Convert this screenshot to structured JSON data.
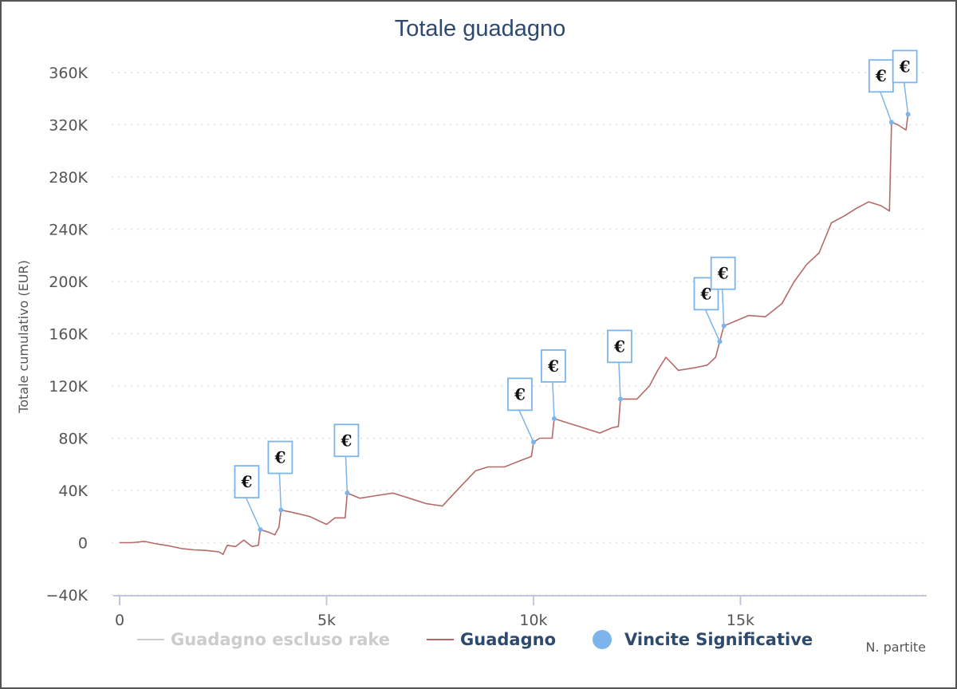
{
  "chart_data": {
    "type": "line",
    "title": "Totale guadagno",
    "xlabel": "N. partite",
    "ylabel": "Totale cumulativo (EUR)",
    "xlim": [
      0,
      19500
    ],
    "ylim": [
      -40000,
      360000
    ],
    "x_ticks": [
      0,
      5000,
      10000,
      15000
    ],
    "x_tick_labels": [
      "0",
      "5k",
      "10k",
      "15k"
    ],
    "y_ticks": [
      -40000,
      0,
      40000,
      80000,
      120000,
      160000,
      200000,
      240000,
      280000,
      320000,
      360000
    ],
    "y_tick_labels": [
      "−40K",
      "0",
      "40K",
      "80K",
      "120K",
      "160K",
      "200K",
      "240K",
      "280K",
      "320K",
      "360K"
    ],
    "grid": "horizontal dotted",
    "legend_position": "bottom",
    "legend": [
      {
        "label": "Guadagno escluso rake",
        "type": "line",
        "color": "#cccccc",
        "visible": false
      },
      {
        "label": "Guadagno",
        "type": "line",
        "color": "#b56a68",
        "visible": true
      },
      {
        "label": "Vincite Significative",
        "type": "marker",
        "color": "#7cb5ec",
        "visible": true
      }
    ],
    "series": [
      {
        "name": "Guadagno",
        "color": "#b56a68",
        "points": [
          [
            0,
            0
          ],
          [
            300,
            0
          ],
          [
            600,
            1000
          ],
          [
            900,
            -1000
          ],
          [
            1200,
            -2500
          ],
          [
            1500,
            -4500
          ],
          [
            1800,
            -5500
          ],
          [
            2100,
            -6000
          ],
          [
            2400,
            -7000
          ],
          [
            2500,
            -9000
          ],
          [
            2600,
            -2000
          ],
          [
            2800,
            -3000
          ],
          [
            3000,
            2000
          ],
          [
            3200,
            -3000
          ],
          [
            3350,
            -2000
          ],
          [
            3400,
            10000
          ],
          [
            3600,
            8000
          ],
          [
            3750,
            6000
          ],
          [
            3850,
            12000
          ],
          [
            3900,
            25000
          ],
          [
            4200,
            23000
          ],
          [
            4600,
            20000
          ],
          [
            5000,
            14000
          ],
          [
            5200,
            19000
          ],
          [
            5450,
            19000
          ],
          [
            5500,
            38000
          ],
          [
            5800,
            34000
          ],
          [
            6200,
            36000
          ],
          [
            6600,
            38000
          ],
          [
            7000,
            34000
          ],
          [
            7400,
            30000
          ],
          [
            7600,
            29000
          ],
          [
            7800,
            28000
          ],
          [
            8000,
            35000
          ],
          [
            8300,
            45000
          ],
          [
            8600,
            55000
          ],
          [
            8900,
            58000
          ],
          [
            9300,
            58000
          ],
          [
            9700,
            63000
          ],
          [
            9950,
            66000
          ],
          [
            10000,
            77000
          ],
          [
            10150,
            80000
          ],
          [
            10450,
            80000
          ],
          [
            10500,
            95000
          ],
          [
            10800,
            92000
          ],
          [
            11200,
            88000
          ],
          [
            11600,
            84000
          ],
          [
            11900,
            88000
          ],
          [
            12050,
            89000
          ],
          [
            12100,
            110000
          ],
          [
            12500,
            110000
          ],
          [
            12800,
            120000
          ],
          [
            13000,
            132000
          ],
          [
            13200,
            142000
          ],
          [
            13500,
            132000
          ],
          [
            13900,
            134000
          ],
          [
            14200,
            136000
          ],
          [
            14400,
            142000
          ],
          [
            14500,
            154000
          ],
          [
            14600,
            166000
          ],
          [
            14900,
            170000
          ],
          [
            15200,
            174000
          ],
          [
            15600,
            173000
          ],
          [
            16000,
            183000
          ],
          [
            16300,
            200000
          ],
          [
            16600,
            213000
          ],
          [
            16900,
            222000
          ],
          [
            17200,
            245000
          ],
          [
            17500,
            250000
          ],
          [
            17800,
            256000
          ],
          [
            18100,
            261000
          ],
          [
            18400,
            258000
          ],
          [
            18600,
            254000
          ],
          [
            18650,
            322000
          ],
          [
            18800,
            320000
          ],
          [
            19000,
            316000
          ],
          [
            19050,
            328000
          ]
        ]
      }
    ],
    "markers": [
      {
        "x": 3400,
        "y": 10000,
        "label": "€"
      },
      {
        "x": 3900,
        "y": 25000,
        "label": "€"
      },
      {
        "x": 5500,
        "y": 38000,
        "label": "€"
      },
      {
        "x": 10000,
        "y": 77000,
        "label": "€"
      },
      {
        "x": 10500,
        "y": 95000,
        "label": "€"
      },
      {
        "x": 12100,
        "y": 110000,
        "label": "€"
      },
      {
        "x": 14500,
        "y": 154000,
        "label": "€"
      },
      {
        "x": 14600,
        "y": 166000,
        "label": "€"
      },
      {
        "x": 18650,
        "y": 322000,
        "label": "€"
      },
      {
        "x": 19050,
        "y": 328000,
        "label": "€"
      }
    ]
  }
}
